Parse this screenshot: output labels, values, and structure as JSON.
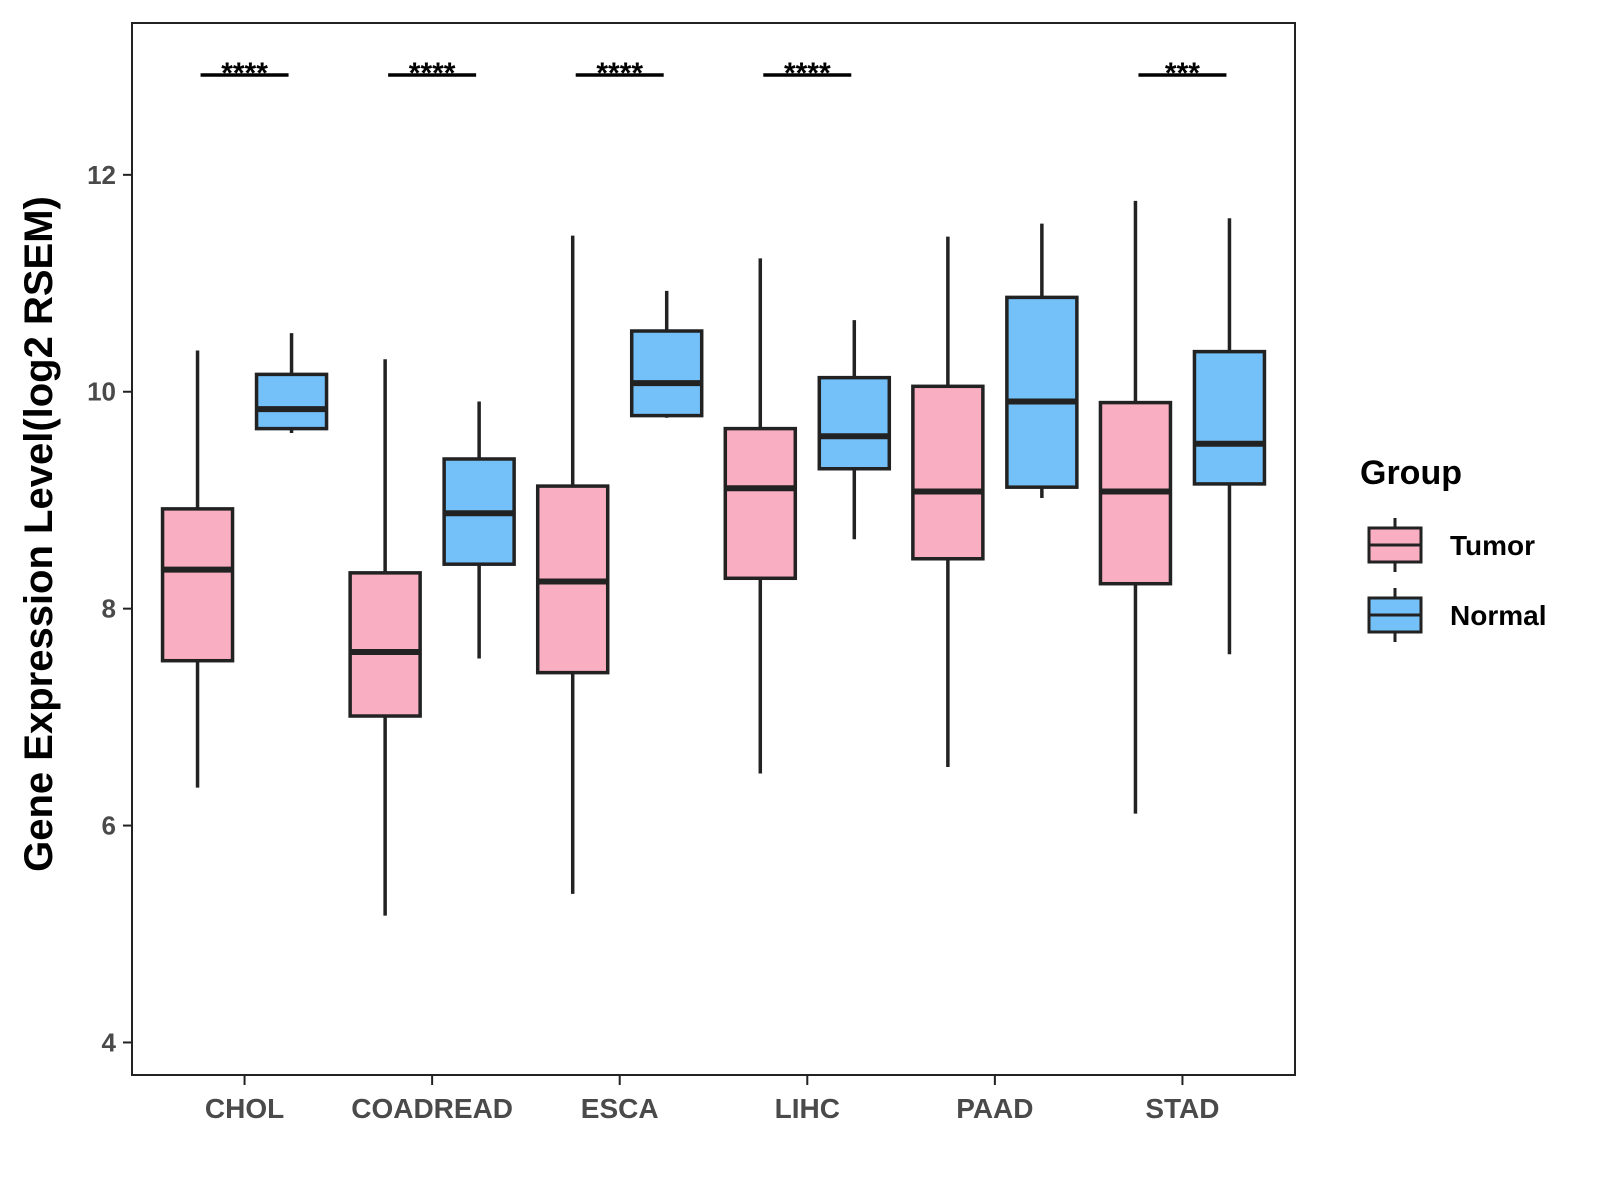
{
  "chart_data": {
    "type": "boxplot",
    "title": "",
    "xlabel": "",
    "ylabel": "Gene Expression Level(log2 RSEM)",
    "ylim": [
      3.7,
      13.4
    ],
    "yticks": [
      4,
      6,
      8,
      10,
      12
    ],
    "grid": false,
    "categories": [
      "CHOL",
      "COADREAD",
      "ESCA",
      "LIHC",
      "PAAD",
      "STAD"
    ],
    "legend": {
      "title": "Group",
      "position": "right",
      "entries": [
        {
          "name": "Tumor",
          "color": "#f9aec1"
        },
        {
          "name": "Normal",
          "color": "#74c0f8"
        }
      ]
    },
    "series": [
      {
        "name": "Tumor",
        "color": "#f9aec1",
        "boxes": [
          {
            "min": 6.35,
            "q1": 7.52,
            "median": 8.36,
            "q3": 8.92,
            "max": 10.38
          },
          {
            "min": 5.17,
            "q1": 7.01,
            "median": 7.6,
            "q3": 8.33,
            "max": 10.3
          },
          {
            "min": 5.37,
            "q1": 7.41,
            "median": 8.25,
            "q3": 9.13,
            "max": 11.44
          },
          {
            "min": 6.48,
            "q1": 8.28,
            "median": 9.11,
            "q3": 9.66,
            "max": 11.23
          },
          {
            "min": 6.54,
            "q1": 8.46,
            "median": 9.08,
            "q3": 10.05,
            "max": 11.43
          },
          {
            "min": 6.11,
            "q1": 8.23,
            "median": 9.08,
            "q3": 9.9,
            "max": 11.76
          }
        ]
      },
      {
        "name": "Normal",
        "color": "#74c0f8",
        "boxes": [
          {
            "min": 9.62,
            "q1": 9.66,
            "median": 9.84,
            "q3": 10.16,
            "max": 10.54
          },
          {
            "min": 7.54,
            "q1": 8.41,
            "median": 8.88,
            "q3": 9.38,
            "max": 9.91
          },
          {
            "min": 9.76,
            "q1": 9.78,
            "median": 10.08,
            "q3": 10.56,
            "max": 10.93
          },
          {
            "min": 8.64,
            "q1": 9.29,
            "median": 9.59,
            "q3": 10.13,
            "max": 10.66
          },
          {
            "min": 9.02,
            "q1": 9.12,
            "median": 9.91,
            "q3": 10.87,
            "max": 11.55
          },
          {
            "min": 7.58,
            "q1": 9.15,
            "median": 9.52,
            "q3": 10.37,
            "max": 11.6
          }
        ]
      }
    ],
    "significance": [
      "****",
      "****",
      "****",
      "****",
      "",
      "***"
    ]
  }
}
